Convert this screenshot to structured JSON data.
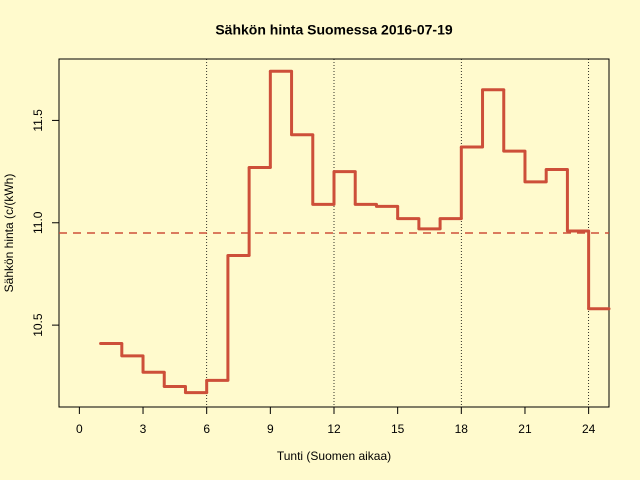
{
  "chart_data": {
    "type": "step",
    "title": "Sähkön hinta Suomessa 2016-07-19",
    "x_label": "Tunti (Suomen aikaa)",
    "y_label": "Sähkön hinta (c/(kWh)",
    "x": [
      1,
      2,
      3,
      4,
      5,
      6,
      7,
      8,
      9,
      10,
      11,
      12,
      13,
      14,
      15,
      16,
      17,
      18,
      19,
      20,
      21,
      22,
      23,
      24
    ],
    "values": [
      10.41,
      10.35,
      10.27,
      10.2,
      10.17,
      10.23,
      10.84,
      11.27,
      11.74,
      11.43,
      11.09,
      11.25,
      11.09,
      11.08,
      11.02,
      10.97,
      11.02,
      11.37,
      11.65,
      11.35,
      11.2,
      11.26,
      10.96,
      10.58
    ],
    "color": "#cd4f39",
    "mean": 10.95,
    "vlines": [
      6,
      12,
      18,
      24
    ],
    "xlim": [
      -0.96,
      24.96
    ],
    "ylim": [
      10.1,
      11.8
    ],
    "xticks": [
      0,
      3,
      6,
      9,
      12,
      15,
      18,
      21,
      24
    ],
    "yticks": [
      10.5,
      {
        "value": 11,
        "label": "11.0"
      },
      11.5
    ]
  }
}
